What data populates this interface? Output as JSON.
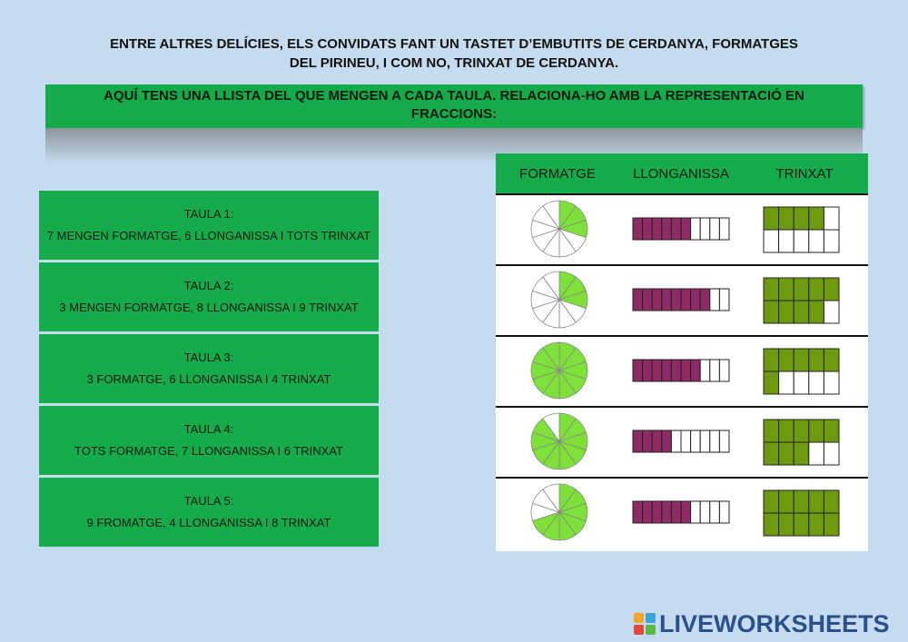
{
  "intro": {
    "line1": "ENTRE ALTRES DELÍCIES, ELS CONVIDATS FANT UN TASTET D’EMBUTITS DE CERDANYA, FORMATGES",
    "line2": "DEL PIRINEU, I COM NO, TRINXAT DE CERDANYA."
  },
  "instruction": {
    "line1": "AQUÍ TENS UNA LLISTA DEL QUE MENGEN A CADA TAULA. RELACIONA-HO AMB LA REPRESENTACIÓ EN",
    "line2": "FRACCIONS:"
  },
  "tables": [
    {
      "title": "TAULA 1:",
      "text": "7 MENGEN FORMATGE, 6 LLONGANISSA I TOTS TRINXAT"
    },
    {
      "title": "TAULA 2:",
      "text": "3 MENGEN FORMATGE, 8 LLONGANISSA I 9 TRINXAT"
    },
    {
      "title": "TAULA 3:",
      "text": "3 FORMATGE, 6 LLONGANISSA I 4 TRINXAT"
    },
    {
      "title": "TAULA 4:",
      "text": "TOTS FORMATGE, 7 LLONGANISSA I 6 TRINXAT"
    },
    {
      "title": "TAULA 5:",
      "text": "9 FROMATGE, 4 LLONGANISSA I 8 TRINXAT"
    }
  ],
  "headers": {
    "formatge": "FORMATGE",
    "llonganissa": "LLONGANISSA",
    "trinxat": "TRINXAT"
  },
  "colors": {
    "green": "#15ab4b",
    "cheese": "#7fe03a",
    "sausage": "#8e2a64",
    "trinxat": "#6e9a10"
  },
  "rows": [
    {
      "cheese_filled": 3,
      "cheese_total": 10,
      "sausage_filled": 6,
      "sausage_total": 10,
      "trinxat_filled": 4,
      "trinxat_total": 10
    },
    {
      "cheese_filled": 3,
      "cheese_total": 10,
      "sausage_filled": 8,
      "sausage_total": 10,
      "trinxat_filled": 9,
      "trinxat_total": 10
    },
    {
      "cheese_filled": 10,
      "cheese_total": 10,
      "sausage_filled": 7,
      "sausage_total": 10,
      "trinxat_filled": 6,
      "trinxat_total": 10
    },
    {
      "cheese_filled": 9,
      "cheese_total": 10,
      "sausage_filled": 4,
      "sausage_total": 10,
      "trinxat_filled": 8,
      "trinxat_total": 10
    },
    {
      "cheese_filled": 7,
      "cheese_total": 10,
      "sausage_filled": 6,
      "sausage_total": 10,
      "trinxat_filled": 10,
      "trinxat_total": 10
    }
  ],
  "logo": {
    "text": "LIVEWORKSHEETS"
  }
}
